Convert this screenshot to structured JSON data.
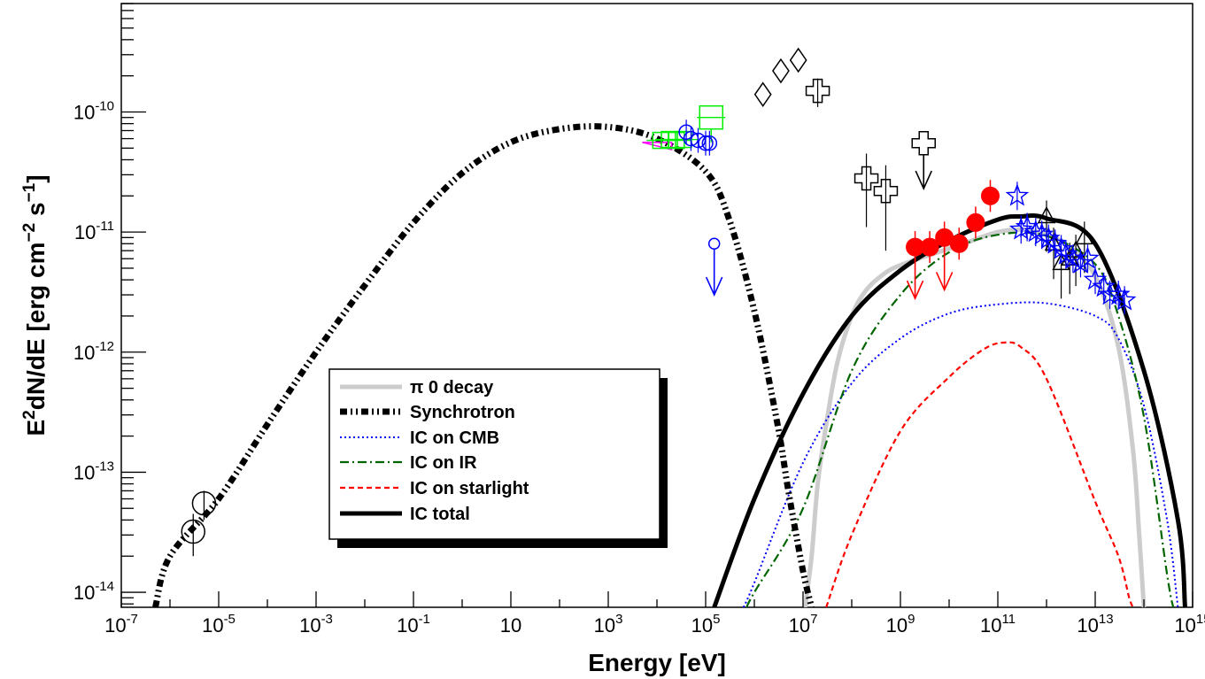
{
  "chart_data": {
    "type": "scatter",
    "xlabel": "Energy [eV]",
    "ylabel": "E2dN/dE [erg cm-2 s-1]",
    "x_scale": "log",
    "y_scale": "log",
    "xlim": [
      1e-07,
      1000000000000000.0
    ],
    "ylim": [
      7.5e-15,
      8e-10
    ],
    "x_ticks": [
      {
        "base": "10",
        "exp": "-7",
        "value": 1e-07
      },
      {
        "base": "10",
        "exp": "-5",
        "value": 1e-05
      },
      {
        "base": "10",
        "exp": "-3",
        "value": 0.001
      },
      {
        "base": "10",
        "exp": "-1",
        "value": 0.1
      },
      {
        "base": "10",
        "exp": "",
        "value": 10
      },
      {
        "base": "10",
        "exp": "3",
        "value": 1000.0
      },
      {
        "base": "10",
        "exp": "5",
        "value": 100000.0
      },
      {
        "base": "10",
        "exp": "7",
        "value": 10000000.0
      },
      {
        "base": "10",
        "exp": "9",
        "value": 1000000000.0
      },
      {
        "base": "10",
        "exp": "11",
        "value": 100000000000.0
      },
      {
        "base": "10",
        "exp": "13",
        "value": 10000000000000.0
      },
      {
        "base": "10",
        "exp": "15",
        "value": 1000000000000000.0
      }
    ],
    "y_ticks": [
      {
        "base": "10",
        "exp": "-14",
        "value": 1e-14
      },
      {
        "base": "10",
        "exp": "-13",
        "value": 1e-13
      },
      {
        "base": "10",
        "exp": "-12",
        "value": 1e-12
      },
      {
        "base": "10",
        "exp": "-11",
        "value": 1e-11
      },
      {
        "base": "10",
        "exp": "-10",
        "value": 1e-10
      }
    ],
    "legend": {
      "position": "center-left",
      "entries": [
        {
          "label": "π 0 decay",
          "color": "#cccccc",
          "style": "solid-thick"
        },
        {
          "label": "Synchrotron",
          "color": "#000000",
          "style": "dash-dot-dot-thick"
        },
        {
          "label": "IC on CMB",
          "color": "#0000ff",
          "style": "dotted"
        },
        {
          "label": "IC on IR",
          "color": "#006400",
          "style": "dash-dot"
        },
        {
          "label": "IC on starlight",
          "color": "#ff0000",
          "style": "dashed"
        },
        {
          "label": "IC total",
          "color": "#000000",
          "style": "solid-thick"
        }
      ]
    },
    "series": [
      {
        "name": "π 0 decay",
        "color": "#cccccc",
        "x": [
          11000000.0,
          15000000.0,
          20000000.0,
          30000000.0,
          50000000.0,
          100000000.0,
          200000000.0,
          500000000.0,
          1000000000.0,
          3000000000.0,
          10000000000.0,
          30000000000.0,
          100000000000.0,
          300000000000.0,
          1000000000000.0,
          3000000000000.0,
          10000000000000.0,
          30000000000000.0,
          60000000000000.0,
          80000000000000.0,
          100000000000000.0
        ],
        "y": [
          7.5e-15,
          2e-14,
          8e-14,
          2.5e-13,
          8e-13,
          2e-12,
          3.3e-12,
          4.6e-12,
          5.3e-12,
          6.2e-12,
          7.3e-12,
          8.5e-12,
          1e-11,
          1.05e-11,
          9.5e-12,
          7.5e-12,
          4.3e-12,
          1.1e-12,
          1.5e-13,
          3e-14,
          7.5e-15
        ]
      },
      {
        "name": "Synchrotron",
        "color": "#000000",
        "x": [
          5e-07,
          1e-06,
          1e-05,
          0.0001,
          0.001,
          0.01,
          0.1,
          1,
          10,
          100,
          1000.0,
          10000.0,
          100000.0,
          300000.0,
          1000000.0,
          3000000.0,
          5000000.0,
          10000000.0,
          15000000.0
        ],
        "y": [
          7.5e-15,
          2e-14,
          6e-14,
          2.5e-13,
          1e-12,
          3.6e-12,
          1.2e-11,
          3.1e-11,
          5.6e-11,
          7.2e-11,
          7.5e-11,
          6e-11,
          3.2e-11,
          1.3e-11,
          2.2e-12,
          2.5e-13,
          7e-14,
          1.5e-14,
          7.5e-15
        ]
      },
      {
        "name": "IC on CMB",
        "color": "#0000ff",
        "x": [
          600000.0,
          1000000.0,
          10000000.0,
          100000000.0,
          1000000000.0,
          10000000000.0,
          100000000000.0,
          1000000000000.0,
          10000000000000.0,
          30000000000000.0,
          100000000000000.0,
          300000000000000.0,
          500000000000000.0
        ],
        "y": [
          7.5e-15,
          1.2e-14,
          1.2e-13,
          5.5e-13,
          1.3e-12,
          2.1e-12,
          2.5e-12,
          2.55e-12,
          2e-12,
          1.3e-12,
          3.6e-13,
          4e-14,
          7.5e-15
        ]
      },
      {
        "name": "IC on IR",
        "color": "#006400",
        "x": [
          700000.0,
          1000000.0,
          10000000.0,
          100000000.0,
          1000000000.0,
          10000000000.0,
          100000000000.0,
          1000000000000.0,
          10000000000000.0,
          30000000000000.0,
          100000000000000.0,
          300000000000000.0,
          400000000000000.0
        ],
        "y": [
          7.5e-15,
          1e-14,
          5e-14,
          7e-13,
          3e-12,
          6.8e-12,
          9.5e-12,
          9.3e-12,
          5.4e-12,
          2e-12,
          2.9e-13,
          1.4e-14,
          7.5e-15
        ]
      },
      {
        "name": "IC on starlight",
        "color": "#ff0000",
        "x": [
          30000000.0,
          100000000.0,
          1000000000.0,
          10000000000.0,
          50000000000.0,
          130000000000.0,
          300000000000.0,
          1000000000000.0,
          10000000000000.0,
          30000000000000.0,
          50000000000000.0,
          60000000000000.0
        ],
        "y": [
          7.5e-15,
          3e-14,
          2.2e-13,
          6.2e-13,
          1.05e-12,
          1.2e-12,
          1.1e-12,
          6e-13,
          5.7e-14,
          2e-14,
          9e-15,
          7.5e-15
        ]
      },
      {
        "name": "IC total",
        "color": "#000000",
        "x": [
          150000.0,
          1000000.0,
          10000000.0,
          100000000.0,
          1000000000.0,
          10000000000.0,
          100000000000.0,
          300000000000.0,
          1000000000000.0,
          10000000000000.0,
          100000000000000.0,
          500000000000000.0,
          700000000000000.0
        ],
        "y": [
          7.5e-15,
          6e-14,
          4.5e-13,
          2e-12,
          4.8e-12,
          8.5e-12,
          1.27e-11,
          1.35e-11,
          1.3e-11,
          8e-12,
          7e-13,
          4e-14,
          7.5e-15
        ]
      }
    ],
    "data_points": {
      "radio_circles": [
        {
          "x": 3e-06,
          "y": 3.2e-14,
          "ylo": 2e-14,
          "yhi": 4.5e-14
        },
        {
          "x": 5e-06,
          "y": 5.5e-14,
          "ylo": 4e-14,
          "yhi": 7e-14
        }
      ],
      "xray_circles": [
        {
          "x": 40000.0,
          "y": 6.8e-11
        },
        {
          "x": 50000.0,
          "y": 6e-11
        },
        {
          "x": 70000.0,
          "y": 5.8e-11
        },
        {
          "x": 100000.0,
          "y": 5.5e-11
        },
        {
          "x": 120000.0,
          "y": 5.5e-11
        }
      ],
      "xray_circle_upper_limit": {
        "x": 150000.0,
        "y": 8e-12,
        "arrow_to": 3e-12
      },
      "xray_squares": [
        {
          "x": 12000.0,
          "y": 5.8e-11
        },
        {
          "x": 18000.0,
          "y": 5.9e-11
        },
        {
          "x": 25000.0,
          "y": 5.8e-11
        },
        {
          "x": 35000.0,
          "y": 5.9e-11
        },
        {
          "x": 130000.0,
          "y": 9e-11
        }
      ],
      "diamonds": [
        {
          "x": 1500000.0,
          "y": 1.4e-10
        },
        {
          "x": 3500000.0,
          "y": 2.2e-10
        },
        {
          "x": 8000000.0,
          "y": 2.7e-10
        }
      ],
      "crosses": [
        {
          "x": 20000000.0,
          "y": 1.5e-10,
          "ylo": 1.1e-10,
          "yhi": 1.9e-10
        },
        {
          "x": 200000000.0,
          "y": 2.8e-11,
          "ylo": 1.1e-11,
          "yhi": 4.5e-11
        },
        {
          "x": 500000000.0,
          "y": 2.2e-11,
          "ylo": 7e-12,
          "yhi": 3.6e-11
        }
      ],
      "cross_upper_limit": {
        "x": 3000000000.0,
        "y": 5.5e-11,
        "arrow_to": 2.3e-11
      },
      "fermi_points": [
        {
          "x": 2000000000.0,
          "y": 7.5e-12,
          "ul": true,
          "arrow_to": 2.8e-12
        },
        {
          "x": 4000000000.0,
          "y": 7.5e-12,
          "ul": false
        },
        {
          "x": 8000000000.0,
          "y": 9e-12,
          "ul": true,
          "arrow_to": 3.3e-12
        },
        {
          "x": 16000000000.0,
          "y": 8e-12,
          "ul": false
        },
        {
          "x": 35000000000.0,
          "y": 1.2e-11,
          "ul": false
        },
        {
          "x": 70000000000.0,
          "y": 2e-11,
          "ul": false
        }
      ],
      "stars": [
        {
          "x": 250000000000.0,
          "y": 2e-11
        },
        {
          "x": 300000000000.0,
          "y": 1.05e-11
        },
        {
          "x": 400000000000.0,
          "y": 1.1e-11
        },
        {
          "x": 600000000000.0,
          "y": 1e-11
        },
        {
          "x": 800000000000.0,
          "y": 9.5e-12
        },
        {
          "x": 1100000000000.0,
          "y": 8.8e-12
        },
        {
          "x": 1500000000000.0,
          "y": 8e-12
        },
        {
          "x": 2000000000000.0,
          "y": 7.2e-12
        },
        {
          "x": 2500000000000.0,
          "y": 6.5e-12
        },
        {
          "x": 3500000000000.0,
          "y": 6e-12
        },
        {
          "x": 5000000000000.0,
          "y": 5.5e-12
        },
        {
          "x": 7000000000000.0,
          "y": 6e-12
        },
        {
          "x": 10000000000000.0,
          "y": 4e-12
        },
        {
          "x": 15000000000000.0,
          "y": 3.5e-12
        },
        {
          "x": 20000000000000.0,
          "y": 3e-12
        },
        {
          "x": 30000000000000.0,
          "y": 3e-12
        },
        {
          "x": 40000000000000.0,
          "y": 2.7e-12
        }
      ],
      "triangles": [
        {
          "x": 1000000000000.0,
          "y": 1.35e-11
        },
        {
          "x": 1400000000000.0,
          "y": 8e-12
        },
        {
          "x": 2000000000000.0,
          "y": 5.5e-12
        },
        {
          "x": 3000000000000.0,
          "y": 6e-12
        },
        {
          "x": 4000000000000.0,
          "y": 7e-12
        },
        {
          "x": 6000000000000.0,
          "y": 9e-12
        }
      ],
      "magenta_bowtie": {
        "x_from": 5000.0,
        "x_to": 20000.0,
        "y_from": 5.5e-11,
        "y_to": 5.2e-11
      }
    },
    "grid": false
  }
}
